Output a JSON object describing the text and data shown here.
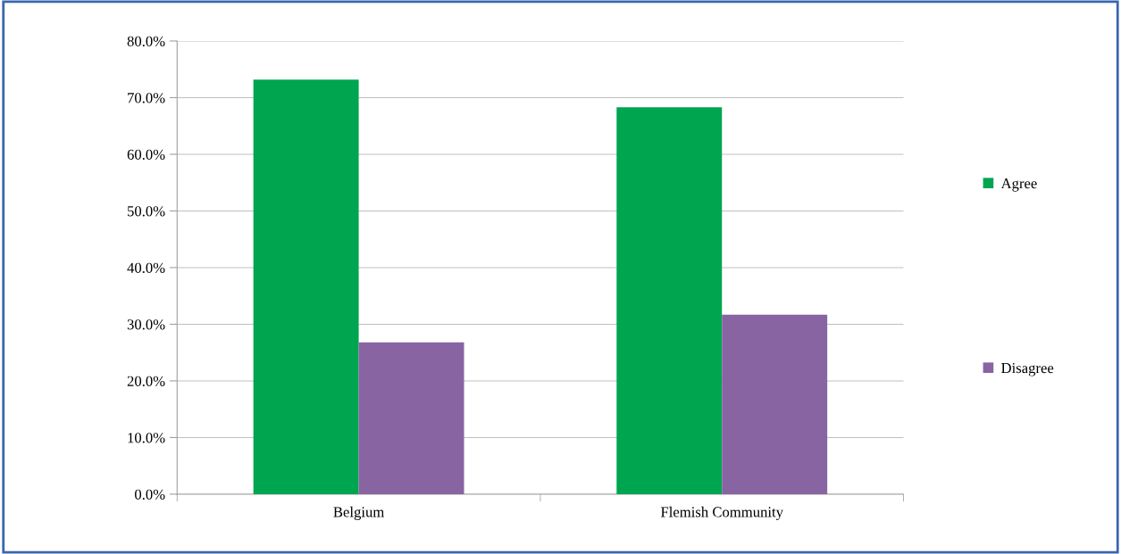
{
  "chart_data": {
    "type": "bar",
    "categories": [
      "Belgium",
      "Flemish Community"
    ],
    "series": [
      {
        "name": "Agree",
        "color": "#00a550",
        "values": [
          73.2,
          68.3
        ]
      },
      {
        "name": "Disagree",
        "color": "#8864a3",
        "values": [
          26.8,
          31.7
        ]
      }
    ],
    "ylim": [
      0,
      80
    ],
    "yticks": [
      {
        "value": 0,
        "label": "0.0%"
      },
      {
        "value": 10,
        "label": "10.0%"
      },
      {
        "value": 20,
        "label": "20.0%"
      },
      {
        "value": 30,
        "label": "30.0%"
      },
      {
        "value": 40,
        "label": "40.0%"
      },
      {
        "value": 50,
        "label": "50.0%"
      },
      {
        "value": 60,
        "label": "60.0%"
      },
      {
        "value": 70,
        "label": "70.0%"
      },
      {
        "value": 80,
        "label": "80.0%"
      }
    ],
    "grid": "y",
    "legend": "right"
  }
}
